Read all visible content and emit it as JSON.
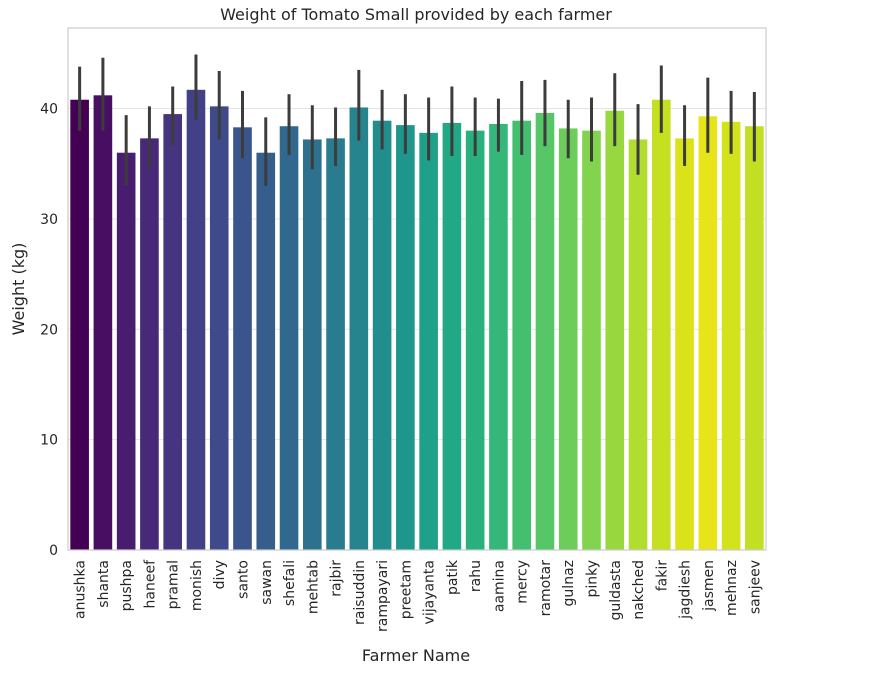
{
  "chart_data": {
    "type": "bar",
    "title": "Weight of Tomato Small provided by each farmer",
    "xlabel": "Farmer Name",
    "ylabel": "Weight (kg)",
    "ylim": [
      0,
      47.3
    ],
    "yticks": [
      0,
      10,
      20,
      30,
      40
    ],
    "grid": true,
    "legend": "none",
    "categories": [
      "anushka",
      "shanta",
      "pushpa",
      "haneef",
      "pramal",
      "monish",
      "divy",
      "santo",
      "sawan",
      "shefali",
      "mehtab",
      "rajbir",
      "raisuddin",
      "rampayari",
      "preetam",
      "vijayanta",
      "patik",
      "rahu",
      "aamina",
      "mercy",
      "ramotar",
      "gulnaz",
      "pinky",
      "guldasta",
      "nakched",
      "fakir",
      "jagdiesh",
      "jasmen",
      "mehnaz",
      "sanjeev"
    ],
    "values": [
      40.8,
      41.2,
      36.0,
      37.3,
      39.5,
      41.7,
      40.2,
      38.3,
      36.0,
      38.4,
      37.2,
      37.3,
      40.1,
      38.9,
      38.5,
      37.8,
      38.7,
      38.0,
      38.6,
      38.9,
      39.6,
      38.2,
      38.0,
      39.8,
      37.2,
      40.8,
      37.3,
      39.3,
      38.8,
      38.4
    ],
    "error_low": [
      38.0,
      38.0,
      33.0,
      34.5,
      36.7,
      39.0,
      37.2,
      35.5,
      33.0,
      35.8,
      34.5,
      34.8,
      37.1,
      36.3,
      35.9,
      35.3,
      35.7,
      35.7,
      36.1,
      35.8,
      36.6,
      35.5,
      35.2,
      36.6,
      34.0,
      37.8,
      34.8,
      36.0,
      35.9,
      35.2
    ],
    "error_high": [
      43.8,
      44.6,
      39.4,
      40.2,
      42.0,
      44.9,
      43.4,
      41.6,
      39.2,
      41.3,
      40.3,
      40.1,
      43.5,
      41.7,
      41.3,
      41.0,
      42.0,
      41.0,
      40.9,
      42.5,
      42.6,
      40.8,
      41.0,
      43.2,
      40.4,
      43.9,
      40.3,
      42.8,
      41.6,
      41.5
    ],
    "colors": [
      "#440154",
      "#470e61",
      "#481c6e",
      "#482878",
      "#463480",
      "#424086",
      "#3e4a89",
      "#3a548c",
      "#355e8d",
      "#31688e",
      "#2d718e",
      "#297b8e",
      "#25848e",
      "#228d8d",
      "#1f968b",
      "#1fa088",
      "#22a884",
      "#2ab07f",
      "#35b779",
      "#44bf70",
      "#56c667",
      "#6ccd5a",
      "#82d34d",
      "#98d83e",
      "#b0dd2f",
      "#c5e021",
      "#dae319",
      "#e7e419",
      "#d2e21b",
      "#c2df23"
    ]
  }
}
